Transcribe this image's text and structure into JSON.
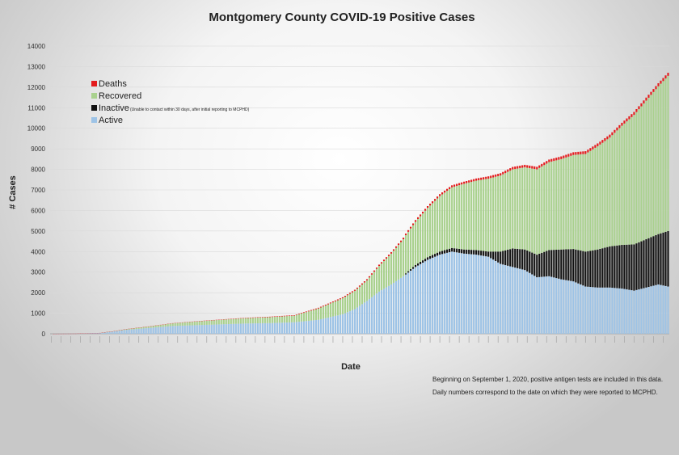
{
  "chart_data": {
    "type": "bar",
    "stacked": true,
    "title": "Montgomery County COVID-19 Positive Cases",
    "xlabel": "Date",
    "ylabel": "# Cases",
    "ylim": [
      0,
      14000
    ],
    "yticks": [
      0,
      1000,
      2000,
      3000,
      4000,
      5000,
      6000,
      7000,
      8000,
      9000,
      10000,
      11000,
      12000,
      13000,
      14000
    ],
    "grid": "horizontal",
    "legend_position": "upper-left",
    "bar_count": 255,
    "series": [
      {
        "name": "Deaths",
        "color": "#e31a1c",
        "knots": [
          [
            0,
            0
          ],
          [
            20,
            2
          ],
          [
            40,
            8
          ],
          [
            80,
            18
          ],
          [
            100,
            25
          ],
          [
            120,
            45
          ],
          [
            140,
            70
          ],
          [
            160,
            95
          ],
          [
            180,
            110
          ],
          [
            200,
            125
          ],
          [
            230,
            140
          ],
          [
            254,
            150
          ]
        ]
      },
      {
        "name": "Recovered",
        "color": "#a9d18e",
        "knots": [
          [
            0,
            0
          ],
          [
            20,
            0
          ],
          [
            30,
            30
          ],
          [
            40,
            70
          ],
          [
            60,
            180
          ],
          [
            80,
            260
          ],
          [
            100,
            320
          ],
          [
            110,
            550
          ],
          [
            120,
            780
          ],
          [
            130,
            1000
          ],
          [
            140,
            1500
          ],
          [
            150,
            2100
          ],
          [
            160,
            2700
          ],
          [
            170,
            3200
          ],
          [
            180,
            3550
          ],
          [
            190,
            3850
          ],
          [
            200,
            4150
          ],
          [
            210,
            4400
          ],
          [
            220,
            4750
          ],
          [
            230,
            5300
          ],
          [
            240,
            6300
          ],
          [
            254,
            7550
          ]
        ]
      },
      {
        "name": "Inactive",
        "note": "(Unable to contact within 30 days, after initial reporting to MCPHD)",
        "color": "#111111",
        "knots": [
          [
            0,
            0
          ],
          [
            145,
            0
          ],
          [
            146,
            50
          ],
          [
            150,
            100
          ],
          [
            160,
            150
          ],
          [
            170,
            200
          ],
          [
            180,
            250
          ],
          [
            185,
            600
          ],
          [
            190,
            900
          ],
          [
            200,
            1100
          ],
          [
            210,
            1450
          ],
          [
            220,
            1700
          ],
          [
            230,
            2000
          ],
          [
            240,
            2250
          ],
          [
            250,
            2450
          ],
          [
            254,
            2700
          ]
        ]
      },
      {
        "name": "Active",
        "color": "#9dc3e6",
        "knots": [
          [
            0,
            0
          ],
          [
            10,
            5
          ],
          [
            20,
            40
          ],
          [
            25,
            100
          ],
          [
            30,
            180
          ],
          [
            40,
            280
          ],
          [
            50,
            380
          ],
          [
            60,
            420
          ],
          [
            70,
            460
          ],
          [
            80,
            500
          ],
          [
            90,
            520
          ],
          [
            100,
            560
          ],
          [
            110,
            680
          ],
          [
            120,
            950
          ],
          [
            125,
            1200
          ],
          [
            130,
            1600
          ],
          [
            135,
            2050
          ],
          [
            140,
            2400
          ],
          [
            145,
            2800
          ],
          [
            150,
            3250
          ],
          [
            155,
            3600
          ],
          [
            160,
            3850
          ],
          [
            165,
            4000
          ],
          [
            170,
            3900
          ],
          [
            175,
            3850
          ],
          [
            180,
            3750
          ],
          [
            185,
            3400
          ],
          [
            190,
            3250
          ],
          [
            195,
            3100
          ],
          [
            200,
            2750
          ],
          [
            205,
            2800
          ],
          [
            210,
            2650
          ],
          [
            215,
            2550
          ],
          [
            220,
            2300
          ],
          [
            225,
            2250
          ],
          [
            230,
            2250
          ],
          [
            235,
            2200
          ],
          [
            240,
            2100
          ],
          [
            245,
            2250
          ],
          [
            250,
            2400
          ],
          [
            254,
            2300
          ]
        ]
      }
    ],
    "notes": [
      "Beginning on September 1, 2020, positive antigen tests are included in this data.",
      "Daily numbers correspond to the date on which they were reported to MCPHD."
    ]
  }
}
